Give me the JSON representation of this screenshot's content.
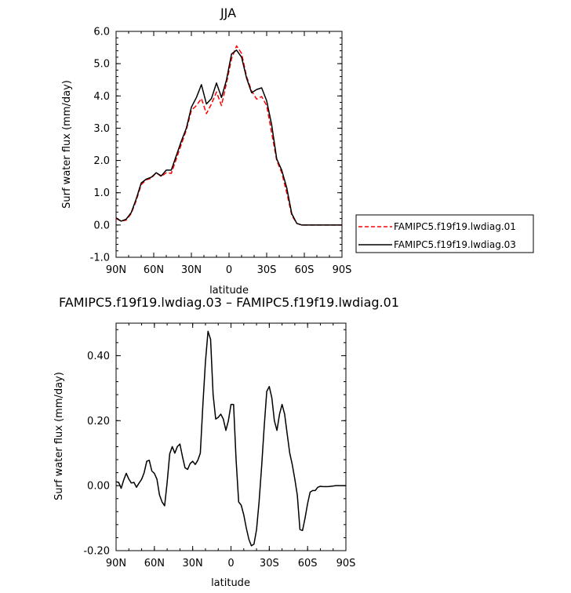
{
  "chart_data": [
    {
      "type": "line",
      "title": "JJA",
      "xlabel": "latitude",
      "ylabel": "Surf water flux (mm/day)",
      "xlim": [
        90,
        -90
      ],
      "ylim": [
        -1.0,
        6.0
      ],
      "yticks": [
        "-1.0",
        "0.0",
        "1.0",
        "2.0",
        "3.0",
        "4.0",
        "5.0",
        "6.0"
      ],
      "xticks": [
        "90N",
        "60N",
        "30N",
        "0",
        "30S",
        "60S",
        "90S"
      ],
      "legend_position": "right, outside plot",
      "series": [
        {
          "name": "FAMIPC5.f19f19.lwdiag.01",
          "color": "#ff0000",
          "style": "dashed",
          "x": [
            90,
            86,
            82,
            78,
            74,
            70,
            66,
            62,
            58,
            54,
            50,
            46,
            42,
            38,
            34,
            30,
            26,
            22,
            18,
            14,
            10,
            6,
            2,
            -2,
            -6,
            -10,
            -14,
            -18,
            -22,
            -26,
            -30,
            -34,
            -38,
            -42,
            -46,
            -50,
            -54,
            -58,
            -62,
            -66,
            -70,
            -74,
            -78,
            -82,
            -86,
            -90
          ],
          "y": [
            0.2,
            0.12,
            0.15,
            0.35,
            0.75,
            1.25,
            1.4,
            1.45,
            1.62,
            1.5,
            1.62,
            1.6,
            2.05,
            2.5,
            2.95,
            3.55,
            3.7,
            3.92,
            3.45,
            3.75,
            4.12,
            3.7,
            4.4,
            5.15,
            5.55,
            5.32,
            4.6,
            4.15,
            3.9,
            3.98,
            3.7,
            2.85,
            2.0,
            1.62,
            1.0,
            0.3,
            0.05,
            0.0,
            0.0,
            0.0,
            0.0,
            0.0,
            0.0,
            0.0,
            0.0,
            0.0
          ]
        },
        {
          "name": "FAMIPC5.f19f19.lwdiag.03",
          "color": "#000000",
          "style": "solid",
          "x": [
            90,
            86,
            82,
            78,
            74,
            70,
            66,
            62,
            58,
            54,
            50,
            46,
            42,
            38,
            34,
            30,
            26,
            22,
            18,
            14,
            10,
            6,
            2,
            -2,
            -6,
            -10,
            -14,
            -18,
            -22,
            -26,
            -30,
            -34,
            -38,
            -42,
            -46,
            -50,
            -54,
            -58,
            -62,
            -66,
            -70,
            -74,
            -78,
            -82,
            -86,
            -90
          ],
          "y": [
            0.22,
            0.12,
            0.18,
            0.38,
            0.8,
            1.3,
            1.42,
            1.48,
            1.62,
            1.52,
            1.7,
            1.7,
            2.15,
            2.6,
            3.0,
            3.65,
            3.95,
            4.35,
            3.75,
            3.92,
            4.4,
            3.95,
            4.5,
            5.3,
            5.42,
            5.2,
            4.55,
            4.1,
            4.2,
            4.25,
            3.85,
            3.1,
            2.05,
            1.7,
            1.15,
            0.35,
            0.05,
            0.0,
            0.0,
            0.0,
            0.0,
            0.0,
            0.0,
            0.0,
            0.0,
            0.0
          ]
        }
      ]
    },
    {
      "type": "line",
      "title": "FAMIPC5.f19f19.lwdiag.03 – FAMIPC5.f19f19.lwdiag.01",
      "xlabel": "latitude",
      "ylabel": "Surf water flux (mm/day)",
      "xlim": [
        90,
        -90
      ],
      "ylim": [
        -0.2,
        0.5
      ],
      "yticks": [
        "-0.20",
        "0.00",
        "0.20",
        "0.40"
      ],
      "xticks": [
        "90N",
        "60N",
        "30N",
        "0",
        "30S",
        "60S",
        "90S"
      ],
      "series": [
        {
          "color": "#000000",
          "style": "solid",
          "x": [
            90,
            88,
            86,
            84,
            82,
            80,
            78,
            76,
            74,
            72,
            70,
            68,
            66,
            64,
            62,
            60,
            58,
            56,
            54,
            52,
            50,
            48,
            46,
            44,
            42,
            40,
            38,
            36,
            34,
            32,
            30,
            28,
            26,
            24,
            22,
            20,
            18,
            16,
            14,
            12,
            10,
            8,
            6,
            4,
            2,
            0,
            -2,
            -4,
            -6,
            -8,
            -10,
            -12,
            -14,
            -16,
            -18,
            -20,
            -22,
            -24,
            -26,
            -28,
            -30,
            -32,
            -34,
            -36,
            -38,
            -40,
            -42,
            -44,
            -46,
            -48,
            -50,
            -52,
            -54,
            -56,
            -58,
            -60,
            -62,
            -64,
            -66,
            -68,
            -70,
            -72,
            -74,
            -76,
            -78,
            -80,
            -82,
            -84,
            -86,
            -88,
            -90
          ],
          "y": [
            0.012,
            0.01,
            -0.008,
            0.018,
            0.038,
            0.02,
            0.008,
            0.01,
            -0.005,
            0.008,
            0.02,
            0.04,
            0.075,
            0.078,
            0.045,
            0.038,
            0.02,
            -0.028,
            -0.05,
            -0.062,
            0.01,
            0.098,
            0.12,
            0.1,
            0.12,
            0.128,
            0.09,
            0.055,
            0.05,
            0.068,
            0.075,
            0.065,
            0.078,
            0.1,
            0.25,
            0.38,
            0.475,
            0.45,
            0.28,
            0.205,
            0.21,
            0.22,
            0.205,
            0.17,
            0.2,
            0.25,
            0.25,
            0.08,
            -0.05,
            -0.06,
            -0.09,
            -0.13,
            -0.165,
            -0.185,
            -0.18,
            -0.135,
            -0.05,
            0.06,
            0.18,
            0.29,
            0.305,
            0.27,
            0.2,
            0.17,
            0.22,
            0.25,
            0.22,
            0.16,
            0.1,
            0.065,
            0.02,
            -0.03,
            -0.135,
            -0.138,
            -0.1,
            -0.055,
            -0.02,
            -0.015,
            -0.015,
            -0.005,
            -0.002,
            -0.003,
            -0.003,
            -0.003,
            -0.002,
            -0.001,
            0.0,
            0.0,
            0.0,
            0.0,
            0.0
          ]
        }
      ]
    }
  ]
}
